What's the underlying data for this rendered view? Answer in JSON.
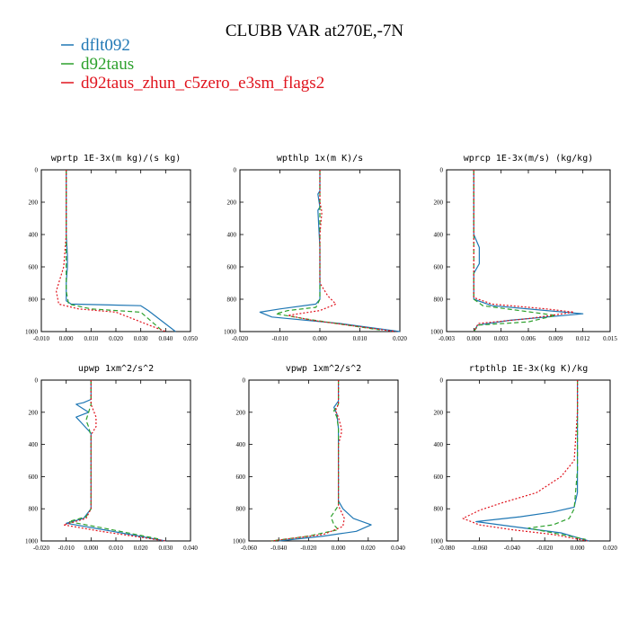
{
  "figure": {
    "title": "CLUBB VAR at270E,-7N"
  },
  "legend": [
    {
      "name": "dflt092",
      "color": "#1f77b4",
      "dash": "solid"
    },
    {
      "name": "d92taus",
      "color": "#2ca02c",
      "dash": "dashed"
    },
    {
      "name": "d92taus_zhun_c5zero_e3sm_flags2",
      "color": "#e0141e",
      "dash": "dotted"
    }
  ],
  "chart_data": [
    {
      "type": "line",
      "title": "wprtp  1E-3x(m kg)/(s kg)",
      "xlim": [
        -0.01,
        0.05
      ],
      "ylim": [
        1000,
        0
      ],
      "xticks": [
        -0.01,
        0.0,
        0.01,
        0.02,
        0.03,
        0.04,
        0.05
      ],
      "xtick_labels": [
        "-0.010",
        "0.000",
        "0.010",
        "0.020",
        "0.030",
        "0.040",
        "0.050"
      ],
      "yticks": [
        0,
        200,
        400,
        600,
        800,
        1000
      ],
      "ytick_labels": [
        "0",
        "200",
        "400",
        "600",
        "800",
        "1000"
      ],
      "series": [
        {
          "name": "dflt092",
          "x": [
            0.0,
            0.0,
            0.0,
            0.0005,
            0.0005,
            0.0,
            0.0,
            0.002,
            0.03,
            0.033,
            0.044
          ],
          "y": [
            0,
            200,
            400,
            530,
            600,
            700,
            810,
            830,
            840,
            870,
            1000
          ]
        },
        {
          "name": "d92taus",
          "x": [
            0.0,
            0.0,
            0.0,
            0.0,
            0.0,
            0.001,
            0.01,
            0.03,
            0.039
          ],
          "y": [
            0,
            200,
            400,
            600,
            750,
            830,
            860,
            880,
            1000
          ]
        },
        {
          "name": "d92taus_zhun_c5zero_e3sm_flags2",
          "x": [
            0.0,
            0.0,
            0.0,
            -0.001,
            -0.004,
            -0.003,
            0.005,
            0.02,
            0.04
          ],
          "y": [
            0,
            200,
            400,
            600,
            750,
            830,
            860,
            880,
            1000
          ]
        }
      ]
    },
    {
      "type": "line",
      "title": "wpthlp  1x(m K)/s",
      "xlim": [
        -0.02,
        0.02
      ],
      "ylim": [
        1000,
        0
      ],
      "xticks": [
        -0.02,
        -0.01,
        0.0,
        0.01,
        0.02
      ],
      "xtick_labels": [
        "-0.020",
        "-0.010",
        "0.000",
        "0.010",
        "0.020"
      ],
      "yticks": [
        0,
        200,
        400,
        600,
        800,
        1000
      ],
      "ytick_labels": [
        "0",
        "200",
        "400",
        "600",
        "800",
        "1000"
      ],
      "series": [
        {
          "name": "dflt092",
          "x": [
            0.0,
            0.0,
            -0.0005,
            0.0,
            -0.0005,
            0.0,
            0.0,
            -0.001,
            -0.01,
            -0.015,
            -0.012,
            0.005,
            0.02
          ],
          "y": [
            0,
            130,
            150,
            230,
            250,
            480,
            800,
            830,
            860,
            880,
            910,
            950,
            1000
          ]
        },
        {
          "name": "d92taus",
          "x": [
            0.0,
            0.0,
            0.0,
            0.0,
            0.0,
            -0.001,
            -0.008,
            -0.011,
            -0.004,
            0.015
          ],
          "y": [
            0,
            200,
            400,
            600,
            800,
            850,
            870,
            890,
            920,
            990
          ]
        },
        {
          "name": "d92taus_zhun_c5zero_e3sm_flags2",
          "x": [
            0.0,
            0.0,
            0.0005,
            0.0,
            0.0,
            0.002,
            0.004,
            0.0,
            -0.008,
            -0.002,
            0.019
          ],
          "y": [
            0,
            200,
            260,
            400,
            700,
            780,
            830,
            870,
            900,
            930,
            1000
          ]
        }
      ]
    },
    {
      "type": "line",
      "title": "wprcp  1E-3x(m/s) (kg/kg)",
      "xlim": [
        -0.003,
        0.015
      ],
      "ylim": [
        1000,
        0
      ],
      "xticks": [
        -0.003,
        0.0,
        0.003,
        0.006,
        0.009,
        0.012,
        0.015
      ],
      "xtick_labels": [
        "-0.003",
        "0.000",
        "0.003",
        "0.006",
        "0.009",
        "0.012",
        "0.015"
      ],
      "yticks": [
        0,
        200,
        400,
        600,
        800,
        1000
      ],
      "ytick_labels": [
        "0",
        "200",
        "400",
        "600",
        "800",
        "1000"
      ],
      "series": [
        {
          "name": "dflt092",
          "x": [
            0.0,
            0.0,
            0.0,
            0.0006,
            0.0006,
            0.0,
            0.0,
            0.002,
            0.008,
            0.012,
            0.004,
            0.0004,
            0.0
          ],
          "y": [
            0,
            300,
            400,
            480,
            580,
            640,
            800,
            840,
            870,
            890,
            930,
            960,
            1000
          ]
        },
        {
          "name": "d92taus",
          "x": [
            0.0,
            0.0,
            0.0,
            0.001,
            0.005,
            0.009,
            0.006,
            0.0005,
            0.0
          ],
          "y": [
            0,
            400,
            800,
            840,
            870,
            900,
            940,
            960,
            1000
          ]
        },
        {
          "name": "d92taus_zhun_c5zero_e3sm_flags2",
          "x": [
            0.0,
            0.0,
            0.0,
            0.002,
            0.008,
            0.011,
            0.006,
            0.0005,
            0.0
          ],
          "y": [
            0,
            400,
            790,
            830,
            860,
            880,
            920,
            950,
            1000
          ]
        }
      ]
    },
    {
      "type": "line",
      "title": "upwp  1xm^2/s^2",
      "xlim": [
        -0.02,
        0.04
      ],
      "ylim": [
        1000,
        0
      ],
      "xticks": [
        -0.02,
        -0.01,
        0.0,
        0.01,
        0.02,
        0.03,
        0.04
      ],
      "xtick_labels": [
        "-0.020",
        "-0.010",
        "0.000",
        "0.010",
        "0.020",
        "0.030",
        "0.040"
      ],
      "yticks": [
        0,
        200,
        400,
        600,
        800,
        1000
      ],
      "ytick_labels": [
        "0",
        "200",
        "400",
        "600",
        "800",
        "1000"
      ],
      "series": [
        {
          "name": "dflt092",
          "x": [
            0.0,
            0.0,
            -0.003,
            -0.006,
            -0.003,
            -0.001,
            -0.006,
            -0.003,
            0.0,
            0.0,
            -0.003,
            -0.01,
            0.005,
            0.03
          ],
          "y": [
            0,
            120,
            140,
            150,
            180,
            200,
            230,
            280,
            330,
            800,
            860,
            890,
            930,
            1000
          ]
        },
        {
          "name": "d92taus",
          "x": [
            0.0,
            0.0,
            -0.001,
            -0.002,
            -0.001,
            0.0,
            0.0,
            -0.002,
            -0.009,
            0.005,
            0.028
          ],
          "y": [
            0,
            150,
            200,
            250,
            290,
            350,
            800,
            850,
            880,
            920,
            990
          ]
        },
        {
          "name": "d92taus_zhun_c5zero_e3sm_flags2",
          "x": [
            0.0,
            0.0,
            0.002,
            0.002,
            0.0,
            0.0,
            -0.002,
            -0.011,
            0.004,
            0.03
          ],
          "y": [
            0,
            150,
            230,
            290,
            340,
            800,
            860,
            900,
            940,
            1000
          ]
        }
      ]
    },
    {
      "type": "line",
      "title": "vpwp  1xm^2/s^2",
      "xlim": [
        -0.06,
        0.04
      ],
      "ylim": [
        1000,
        0
      ],
      "xticks": [
        -0.06,
        -0.04,
        -0.02,
        0.0,
        0.02,
        0.04
      ],
      "xtick_labels": [
        "-0.060",
        "-0.040",
        "-0.020",
        "0.000",
        "0.020",
        "0.040"
      ],
      "yticks": [
        0,
        200,
        400,
        600,
        800,
        1000
      ],
      "ytick_labels": [
        "0",
        "200",
        "400",
        "600",
        "800",
        "1000"
      ],
      "series": [
        {
          "name": "dflt092",
          "x": [
            0.0,
            0.0,
            -0.003,
            -0.001,
            0.0,
            0.0,
            0.003,
            0.01,
            0.022,
            0.012,
            -0.01,
            -0.04
          ],
          "y": [
            0,
            130,
            170,
            210,
            300,
            750,
            800,
            860,
            900,
            940,
            970,
            1000
          ]
        },
        {
          "name": "d92taus",
          "x": [
            0.0,
            0.0,
            -0.003,
            -0.001,
            0.0,
            0.0,
            -0.005,
            -0.003,
            0.0,
            -0.02,
            -0.045
          ],
          "y": [
            0,
            150,
            190,
            230,
            300,
            780,
            850,
            900,
            930,
            970,
            1000
          ]
        },
        {
          "name": "d92taus_zhun_c5zero_e3sm_flags2",
          "x": [
            0.0,
            0.0,
            -0.002,
            0.0,
            0.002,
            0.002,
            0.0,
            0.0,
            0.004,
            0.003,
            -0.01,
            -0.045
          ],
          "y": [
            0,
            150,
            190,
            230,
            300,
            330,
            400,
            780,
            860,
            910,
            960,
            1000
          ]
        }
      ]
    },
    {
      "type": "line",
      "title": "rtpthlp  1E-3x(kg K)/kg",
      "xlim": [
        -0.08,
        0.02
      ],
      "ylim": [
        1000,
        0
      ],
      "xticks": [
        -0.08,
        -0.06,
        -0.04,
        -0.02,
        0.0,
        0.02
      ],
      "xtick_labels": [
        "-0.080",
        "-0.060",
        "-0.040",
        "-0.020",
        "0.000",
        "0.020"
      ],
      "yticks": [
        0,
        200,
        400,
        600,
        800,
        1000
      ],
      "ytick_labels": [
        "0",
        "200",
        "400",
        "600",
        "800",
        "1000"
      ],
      "series": [
        {
          "name": "dflt092",
          "x": [
            0.0,
            0.0,
            0.0,
            -0.002,
            -0.015,
            -0.035,
            -0.062,
            -0.04,
            -0.01,
            0.007
          ],
          "y": [
            0,
            200,
            700,
            790,
            820,
            850,
            880,
            910,
            950,
            1000
          ]
        },
        {
          "name": "d92taus",
          "x": [
            0.0,
            0.0,
            0.0,
            -0.002,
            -0.005,
            -0.015,
            -0.03,
            -0.01,
            0.005
          ],
          "y": [
            0,
            300,
            560,
            800,
            860,
            900,
            920,
            960,
            990
          ]
        },
        {
          "name": "d92taus_zhun_c5zero_e3sm_flags2",
          "x": [
            0.0,
            0.0,
            -0.002,
            -0.01,
            -0.025,
            -0.045,
            -0.06,
            -0.07,
            -0.06,
            -0.04,
            -0.015,
            0.006
          ],
          "y": [
            0,
            200,
            500,
            600,
            700,
            760,
            810,
            860,
            900,
            930,
            960,
            1000
          ]
        }
      ]
    }
  ]
}
